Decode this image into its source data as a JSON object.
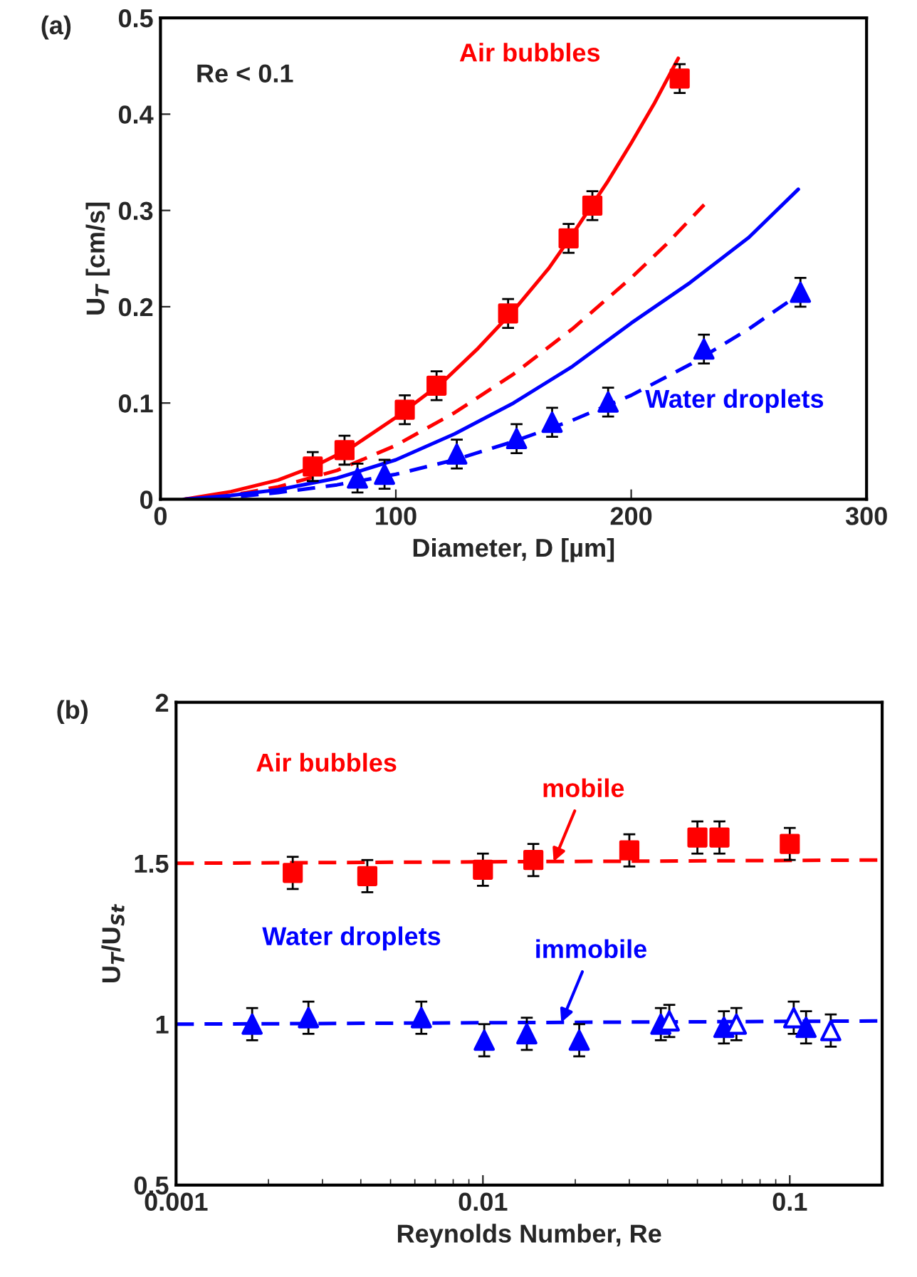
{
  "chart_data": [
    {
      "type": "scatter",
      "xlabel": "Diameter, D [µm]",
      "ylabel": "U$_{T}$ [cm/s]",
      "xlim": [
        0,
        300
      ],
      "ylim": [
        0,
        0.5
      ],
      "xticks": [
        0,
        100,
        200,
        300
      ],
      "yticks": [
        0,
        0.1,
        0.2,
        0.3,
        0.4,
        0.5
      ],
      "grid": false,
      "legend": false,
      "annotations": [
        "(a)",
        "Re < 0.1"
      ],
      "series": [
        {
          "name": "Air bubbles",
          "type": "scatter",
          "marker": "square",
          "color": "#ff0000",
          "x": [
            64.7,
            78.2,
            103.8,
            117.3,
            147.7,
            173.4,
            183.5,
            220.6
          ],
          "values": [
            0.034,
            0.051,
            0.093,
            0.118,
            0.193,
            0.271,
            0.305,
            0.437
          ],
          "errors": [
            0.015,
            0.015,
            0.015,
            0.015,
            0.015,
            0.015,
            0.015,
            0.015
          ]
        },
        {
          "name": "Water droplets",
          "type": "scatter",
          "marker": "triangle",
          "color": "#0000ff",
          "x": [
            83.7,
            95.2,
            125.9,
            151.3,
            166.4,
            190.2,
            230.9,
            271.9
          ],
          "values": [
            0.022,
            0.026,
            0.047,
            0.063,
            0.08,
            0.101,
            0.156,
            0.215
          ],
          "errors": [
            0.015,
            0.015,
            0.015,
            0.015,
            0.015,
            0.015,
            0.015,
            0.015
          ]
        },
        {
          "type": "line",
          "line_style": "solid",
          "marker": "none",
          "color": "#ff0000",
          "x": [
            10,
            30,
            50,
            65,
            80,
            100,
            120,
            135,
            150,
            165,
            175,
            190,
            200,
            210,
            220
          ],
          "values": [
            0,
            0.008,
            0.02,
            0.034,
            0.052,
            0.085,
            0.122,
            0.157,
            0.196,
            0.24,
            0.275,
            0.33,
            0.37,
            0.412,
            0.458
          ]
        },
        {
          "type": "line",
          "line_style": "dashed",
          "marker": "none",
          "color": "#ff0000",
          "x": [
            10,
            30,
            50,
            75,
            100,
            125,
            150,
            175,
            200,
            215,
            231
          ],
          "values": [
            0,
            0.004,
            0.013,
            0.03,
            0.056,
            0.09,
            0.13,
            0.177,
            0.23,
            0.265,
            0.306
          ]
        },
        {
          "type": "line",
          "line_style": "solid",
          "marker": "none",
          "color": "#0000ff",
          "x": [
            10,
            30,
            50,
            75,
            100,
            125,
            150,
            175,
            200,
            225,
            250,
            271
          ],
          "values": [
            0,
            0.004,
            0.01,
            0.022,
            0.041,
            0.068,
            0.1,
            0.138,
            0.183,
            0.225,
            0.272,
            0.322
          ]
        },
        {
          "type": "line",
          "line_style": "dashed",
          "marker": "none",
          "color": "#0000ff",
          "x": [
            10,
            30,
            50,
            75,
            100,
            125,
            150,
            175,
            200,
            225,
            250,
            272
          ],
          "values": [
            0,
            0.002,
            0.007,
            0.015,
            0.026,
            0.041,
            0.06,
            0.082,
            0.108,
            0.14,
            0.177,
            0.214
          ]
        }
      ]
    },
    {
      "type": "scatter",
      "xlabel": "Reynolds Number, Re",
      "ylabel": "U$_{T}$/U$_{St}$",
      "log": "x",
      "xlim": [
        0.001,
        0.2
      ],
      "ylim": [
        0.5,
        2
      ],
      "xticks": [
        0.001,
        0.01,
        0.1
      ],
      "yticks": [
        0.5,
        1,
        1.5,
        2
      ],
      "grid": false,
      "legend": false,
      "annotations": [
        "(b)",
        {
          "text": "mobile",
          "x": 0.017,
          "y": 1.505
        },
        {
          "text": "immobile",
          "x": 0.018,
          "y": 1.005
        }
      ],
      "series": [
        {
          "name": "Air bubbles",
          "type": "scatter",
          "marker": "square",
          "color": "#ff0000",
          "x": [
            0.0024,
            0.0042,
            0.01,
            0.0146,
            0.03,
            0.05,
            0.059,
            0.1
          ],
          "values": [
            1.47,
            1.46,
            1.48,
            1.51,
            1.54,
            1.58,
            1.58,
            1.56
          ],
          "errors": [
            0.05,
            0.05,
            0.05,
            0.05,
            0.05,
            0.05,
            0.05,
            0.05
          ]
        },
        {
          "name": "Water droplets",
          "type": "scatter",
          "marker": "triangle",
          "color": "#0000ff",
          "x": [
            0.00177,
            0.0027,
            0.0063,
            0.0101,
            0.0139,
            0.0206,
            0.038,
            0.061,
            0.113
          ],
          "values": [
            1.0,
            1.02,
            1.02,
            0.95,
            0.97,
            0.95,
            1.0,
            0.99,
            0.99
          ],
          "errors": [
            0.05,
            0.05,
            0.05,
            0.05,
            0.05,
            0.05,
            0.05,
            0.05,
            0.05
          ]
        },
        {
          "type": "scatter",
          "marker": "triangle",
          "color": "#0000ff",
          "x": [
            0.0405,
            0.067,
            0.103,
            0.136
          ],
          "values": [
            1.01,
            1.0,
            1.02,
            0.98
          ],
          "errors": [
            0.05,
            0.05,
            0.05,
            0.05
          ]
        },
        {
          "type": "line",
          "line_style": "dashed",
          "marker": "none",
          "color": "#ff0000",
          "x": [
            0.001,
            0.2
          ],
          "values": [
            1.5,
            1.51
          ]
        },
        {
          "type": "line",
          "line_style": "dashed",
          "marker": "none",
          "color": "#0000ff",
          "x": [
            0.001,
            0.2
          ],
          "values": [
            1.0,
            1.01
          ]
        }
      ]
    }
  ]
}
